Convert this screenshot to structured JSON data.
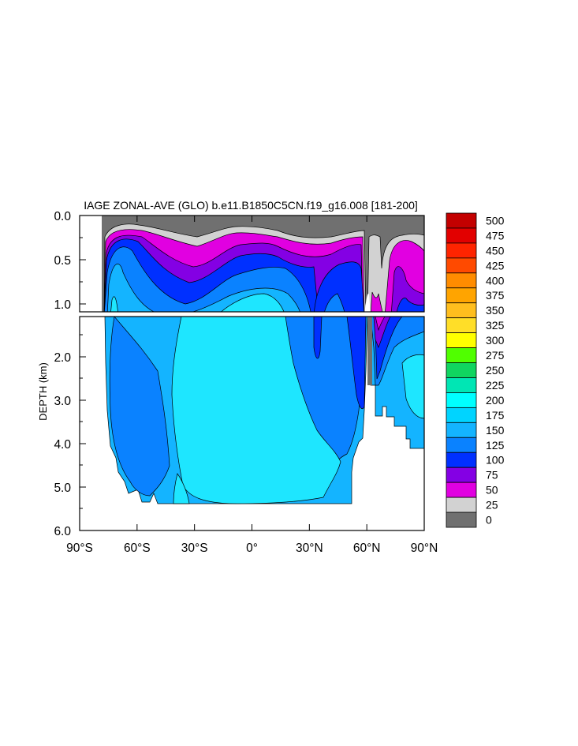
{
  "chart_data": {
    "type": "heatmap",
    "title": "IAGE ZONAL-AVE (GLO) b.e11.B1850C5CN.f19_g16.008 [181-200]",
    "ylabel": "DEPTH (km)",
    "xlabel": "",
    "x_ticks": [
      "90°S",
      "60°S",
      "30°S",
      "0°",
      "30°N",
      "60°N",
      "90°N"
    ],
    "x_range": [
      -90,
      90
    ],
    "upper_panel": {
      "depth_range_km": [
        0.0,
        1.1
      ],
      "y_ticks": [
        "0.0",
        "0.5",
        "1.0"
      ]
    },
    "lower_panel": {
      "depth_range_km": [
        1.1,
        6.0
      ],
      "y_ticks": [
        "2.0",
        "3.0",
        "4.0",
        "5.0",
        "6.0"
      ]
    },
    "colorbar": {
      "levels": [
        "500",
        "475",
        "450",
        "425",
        "400",
        "375",
        "350",
        "325",
        "300",
        "275",
        "250",
        "225",
        "200",
        "175",
        "150",
        "125",
        "100",
        "75",
        "50",
        "25",
        "0"
      ],
      "colors": [
        "#c30000",
        "#e20000",
        "#ff2400",
        "#ff4a00",
        "#ff8c00",
        "#ffa400",
        "#ffbe1e",
        "#ffde28",
        "#ffff00",
        "#50ff00",
        "#10d560",
        "#00e6b4",
        "#00ffff",
        "#00d4ff",
        "#14b4ff",
        "#0a82ff",
        "#0030ff",
        "#8400e4",
        "#e100e1",
        "#d2d2d2",
        "#707070"
      ]
    },
    "fill_colors": {
      "0-25": "#707070",
      "25-50": "#d2d2d2",
      "50-75": "#e100e1",
      "75-100": "#8400e4",
      "100-125": "#0030ff",
      "125-150": "#0a82ff",
      "150-175": "#14b4ff",
      "175-200": "#00d4ff",
      "200-225": "#1ee6ff"
    }
  }
}
